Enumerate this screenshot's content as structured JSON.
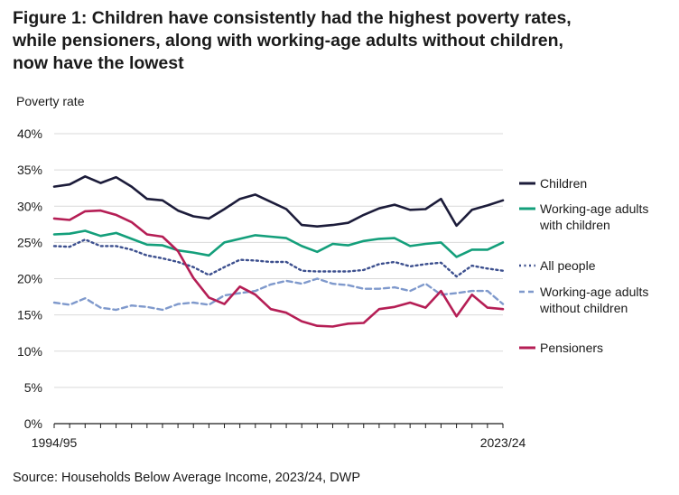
{
  "title_lines": [
    "Figure 1: Children have consistently had the highest poverty rates,",
    "while pensioners, along with working-age adults without children,",
    "now have the lowest"
  ],
  "source": "Source: Households Below Average Income, 2023/24, DWP",
  "chart_data": {
    "type": "line",
    "title": "Figure 1: Children have consistently had the highest poverty rates, while pensioners, along with working-age adults without children, now have the lowest",
    "ylabel": "Poverty rate",
    "xlabel": "",
    "ylim": [
      0,
      40
    ],
    "yticks": [
      0,
      5,
      10,
      15,
      20,
      25,
      30,
      35,
      40
    ],
    "ytick_labels": [
      "0%",
      "5%",
      "10%",
      "15%",
      "20%",
      "25%",
      "30%",
      "35%",
      "40%"
    ],
    "grid": true,
    "legend_position": "right",
    "x_tick_labels": [
      "1994/95",
      "2023/24"
    ],
    "x": [
      "1994/95",
      "1995/96",
      "1996/97",
      "1997/98",
      "1998/99",
      "1999/00",
      "2000/01",
      "2001/02",
      "2002/03",
      "2003/04",
      "2004/05",
      "2005/06",
      "2006/07",
      "2007/08",
      "2008/09",
      "2009/10",
      "2010/11",
      "2011/12",
      "2012/13",
      "2013/14",
      "2014/15",
      "2015/16",
      "2016/17",
      "2017/18",
      "2018/19",
      "2019/20",
      "2020/21",
      "2021/22",
      "2022/23",
      "2023/24"
    ],
    "series": [
      {
        "name": "Children",
        "color": "#1c1c3a",
        "dash": "solid",
        "values": [
          32.7,
          33.0,
          34.1,
          33.2,
          34.0,
          32.7,
          31.0,
          30.8,
          29.4,
          28.6,
          28.3,
          29.6,
          31.0,
          31.6,
          30.6,
          29.6,
          27.4,
          27.2,
          27.4,
          27.7,
          28.8,
          29.7,
          30.2,
          29.5,
          29.6,
          31.0,
          27.3,
          29.5,
          30.1,
          30.8
        ]
      },
      {
        "name": "Working-age adults with children",
        "color": "#149f7b",
        "dash": "solid",
        "values": [
          26.1,
          26.2,
          26.6,
          25.9,
          26.3,
          25.5,
          24.7,
          24.6,
          23.9,
          23.6,
          23.2,
          25.0,
          25.5,
          26.0,
          25.8,
          25.6,
          24.5,
          23.7,
          24.8,
          24.6,
          25.2,
          25.5,
          25.6,
          24.5,
          24.8,
          25.0,
          23.0,
          24.0,
          24.0,
          25.0
        ]
      },
      {
        "name": "All people",
        "color": "#3c4f8e",
        "dash": "dotted",
        "values": [
          24.5,
          24.4,
          25.4,
          24.5,
          24.5,
          24.0,
          23.2,
          22.8,
          22.3,
          21.6,
          20.5,
          21.6,
          22.6,
          22.5,
          22.3,
          22.3,
          21.1,
          21.0,
          21.0,
          21.0,
          21.2,
          22.0,
          22.3,
          21.7,
          22.0,
          22.2,
          20.3,
          21.8,
          21.4,
          21.1
        ]
      },
      {
        "name": "Working-age adults without children",
        "color": "#7f99cc",
        "dash": "dashed",
        "values": [
          16.7,
          16.4,
          17.3,
          16.0,
          15.7,
          16.3,
          16.1,
          15.7,
          16.5,
          16.7,
          16.4,
          17.7,
          18.0,
          18.3,
          19.2,
          19.7,
          19.3,
          20.0,
          19.3,
          19.1,
          18.6,
          18.6,
          18.8,
          18.3,
          19.3,
          17.8,
          18.0,
          18.3,
          18.3,
          16.5
        ]
      },
      {
        "name": "Pensioners",
        "color": "#b51e55",
        "dash": "solid",
        "values": [
          28.3,
          28.1,
          29.3,
          29.4,
          28.8,
          27.8,
          26.1,
          25.8,
          23.8,
          20.1,
          17.4,
          16.5,
          18.9,
          17.8,
          15.8,
          15.3,
          14.1,
          13.5,
          13.4,
          13.8,
          13.9,
          15.8,
          16.1,
          16.7,
          16.0,
          18.3,
          14.8,
          17.8,
          16.0,
          15.8
        ]
      }
    ],
    "legend": [
      {
        "label": "Children"
      },
      {
        "label": "Working-age adults with children"
      },
      {
        "label": "All people"
      },
      {
        "label": "Working-age adults without children"
      },
      {
        "label": "Pensioners"
      }
    ]
  }
}
